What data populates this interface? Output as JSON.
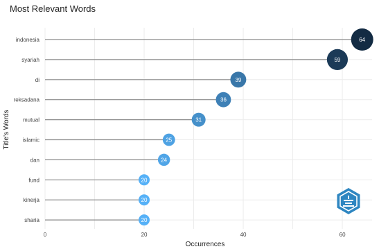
{
  "chart_data": {
    "type": "scatter",
    "subtype": "lollipop",
    "title": "Most Relevant Words",
    "xlabel": "Occurrences",
    "ylabel": "Title's Words",
    "xlim": [
      0,
      66
    ],
    "xticks": [
      0,
      20,
      40,
      60
    ],
    "grid": true,
    "legend": "none",
    "categories": [
      "indonesia",
      "syariah",
      "di",
      "reksadana",
      "mutual",
      "islamic",
      "dan",
      "fund",
      "kinerja",
      "sharia"
    ],
    "values": [
      64,
      59,
      39,
      36,
      31,
      25,
      24,
      20,
      20,
      20
    ],
    "colors": {
      "high": "#132b43",
      "low": "#56b1f7",
      "stem": "#8a8a8a",
      "grid": "#ececec"
    }
  },
  "logo": {
    "icon": "hexagon-logo-icon",
    "color": "#2e86c1"
  }
}
